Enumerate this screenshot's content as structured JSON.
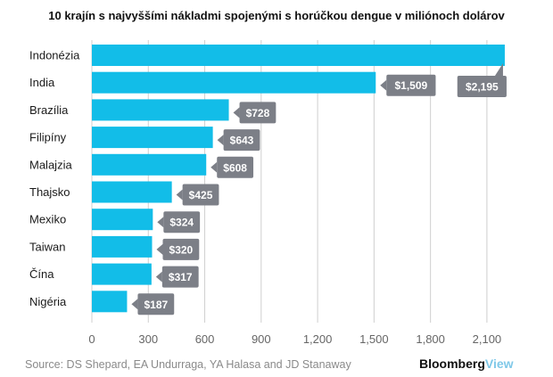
{
  "chart_data": {
    "type": "bar",
    "orientation": "horizontal",
    "title": "10 krajín s najvyššími nákladmi spojenými s horúčkou dengue v miliónoch dolárov",
    "categories": [
      "Indonézia",
      "India",
      "Brazília",
      "Filipíny",
      "Malajzia",
      "Thajsko",
      "Mexiko",
      "Taiwan",
      "Čína",
      "Nigéria"
    ],
    "values": [
      2195,
      1509,
      728,
      643,
      608,
      425,
      324,
      320,
      317,
      187
    ],
    "value_labels": [
      "$2,195",
      "$1,509",
      "$728",
      "$643",
      "$608",
      "$425",
      "$324",
      "$320",
      "$317",
      "$187"
    ],
    "xlim": [
      0,
      2200
    ],
    "ticks": [
      0,
      300,
      600,
      900,
      1200,
      1500,
      1800,
      2100
    ],
    "tick_labels": [
      "0",
      "300",
      "600",
      "900",
      "1,200",
      "1,500",
      "1,800",
      "2,100"
    ],
    "xlabel": "",
    "ylabel": "",
    "grid": true,
    "colors": {
      "bar": "#12bde8",
      "label_bg": "#7c7f87",
      "grid": "#cfcfcf"
    }
  },
  "footer": {
    "source": "Source: DS Shepard, EA Undurraga, YA Halasa and JD Stanaway",
    "brand_main": "Bloomberg",
    "brand_accent": "View"
  }
}
